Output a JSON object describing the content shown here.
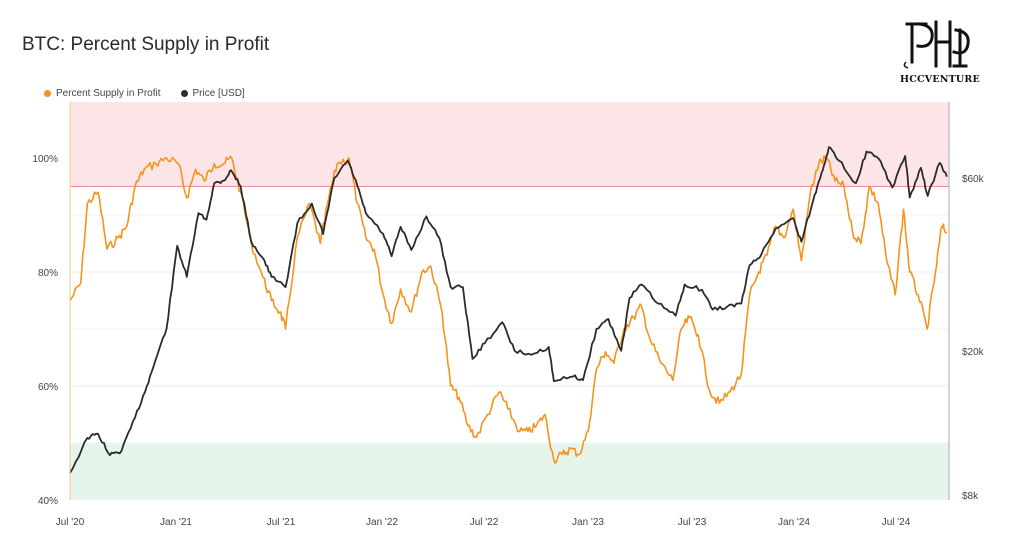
{
  "title": "BTC: Percent Supply in Profit",
  "logo": {
    "text": "HCCVENTURE"
  },
  "legend": [
    {
      "label": "Percent Supply in Profit",
      "color": "#f7931a"
    },
    {
      "label": "Price [USD]",
      "color": "#2b2b2b"
    }
  ],
  "chart_data": {
    "type": "line",
    "title": "BTC: Percent Supply in Profit",
    "x_ticks": [
      "Jul '20",
      "Jan '21",
      "Jul '21",
      "Jan '22",
      "Jul '22",
      "Jan '23",
      "Jul '23",
      "Jan '24",
      "Jul '24"
    ],
    "y_left_ticks": [
      "100%",
      "80%",
      "60%",
      "40%"
    ],
    "y_left_range": [
      40,
      110
    ],
    "y_right_ticks": [
      "$60k",
      "$20k",
      "$8k"
    ],
    "y_right_scale": "log",
    "bands": [
      {
        "name": "upper",
        "from": 95,
        "to": 110,
        "color": "#fde4e6",
        "line_color": "#f08aa0"
      },
      {
        "name": "lower",
        "from": 40,
        "to": 50,
        "color": "#e6f5ec",
        "line_color": "#8fcfa9"
      }
    ],
    "series": [
      {
        "name": "Percent Supply in Profit",
        "color": "#f7931a",
        "axis": "left",
        "unit": "%",
        "points": [
          [
            "2020-07-01",
            75
          ],
          [
            "2020-07-20",
            78
          ],
          [
            "2020-08-01",
            92
          ],
          [
            "2020-08-20",
            94
          ],
          [
            "2020-09-05",
            84
          ],
          [
            "2020-09-25",
            86
          ],
          [
            "2020-10-10",
            88
          ],
          [
            "2020-10-25",
            95
          ],
          [
            "2020-11-10",
            98
          ],
          [
            "2020-12-01",
            99
          ],
          [
            "2020-12-20",
            100
          ],
          [
            "2021-01-10",
            99
          ],
          [
            "2021-01-25",
            93
          ],
          [
            "2021-02-10",
            98
          ],
          [
            "2021-02-25",
            96
          ],
          [
            "2021-03-15",
            99
          ],
          [
            "2021-04-01",
            99
          ],
          [
            "2021-04-15",
            100
          ],
          [
            "2021-05-01",
            94
          ],
          [
            "2021-05-20",
            85
          ],
          [
            "2021-06-10",
            79
          ],
          [
            "2021-06-25",
            75
          ],
          [
            "2021-07-10",
            73
          ],
          [
            "2021-07-20",
            70
          ],
          [
            "2021-08-10",
            86
          ],
          [
            "2021-09-01",
            92
          ],
          [
            "2021-09-20",
            85
          ],
          [
            "2021-10-05",
            93
          ],
          [
            "2021-10-20",
            99
          ],
          [
            "2021-11-10",
            100
          ],
          [
            "2021-11-25",
            92
          ],
          [
            "2021-12-10",
            86
          ],
          [
            "2021-12-25",
            84
          ],
          [
            "2022-01-10",
            76
          ],
          [
            "2022-01-25",
            71
          ],
          [
            "2022-02-10",
            77
          ],
          [
            "2022-03-01",
            73
          ],
          [
            "2022-03-20",
            80
          ],
          [
            "2022-04-05",
            81
          ],
          [
            "2022-04-25",
            73
          ],
          [
            "2022-05-10",
            60
          ],
          [
            "2022-05-25",
            58
          ],
          [
            "2022-06-10",
            53
          ],
          [
            "2022-06-25",
            51
          ],
          [
            "2022-07-15",
            55
          ],
          [
            "2022-08-05",
            59
          ],
          [
            "2022-08-20",
            56
          ],
          [
            "2022-09-10",
            52
          ],
          [
            "2022-09-25",
            52
          ],
          [
            "2022-10-10",
            53
          ],
          [
            "2022-10-25",
            55
          ],
          [
            "2022-11-10",
            47
          ],
          [
            "2022-11-25",
            48
          ],
          [
            "2022-12-10",
            49
          ],
          [
            "2022-12-25",
            48
          ],
          [
            "2023-01-10",
            52
          ],
          [
            "2023-01-25",
            63
          ],
          [
            "2023-02-10",
            66
          ],
          [
            "2023-02-25",
            64
          ],
          [
            "2023-03-15",
            70
          ],
          [
            "2023-04-01",
            72
          ],
          [
            "2023-04-15",
            74
          ],
          [
            "2023-05-01",
            68
          ],
          [
            "2023-05-20",
            64
          ],
          [
            "2023-06-10",
            61
          ],
          [
            "2023-06-25",
            70
          ],
          [
            "2023-07-10",
            72
          ],
          [
            "2023-07-25",
            69
          ],
          [
            "2023-08-15",
            59
          ],
          [
            "2023-09-01",
            57
          ],
          [
            "2023-09-20",
            59
          ],
          [
            "2023-10-10",
            62
          ],
          [
            "2023-10-25",
            76
          ],
          [
            "2023-11-10",
            80
          ],
          [
            "2023-11-25",
            83
          ],
          [
            "2023-12-10",
            88
          ],
          [
            "2023-12-25",
            86
          ],
          [
            "2024-01-10",
            91
          ],
          [
            "2024-01-25",
            82
          ],
          [
            "2024-02-10",
            94
          ],
          [
            "2024-02-25",
            99
          ],
          [
            "2024-03-10",
            100
          ],
          [
            "2024-03-25",
            96
          ],
          [
            "2024-04-10",
            95
          ],
          [
            "2024-04-25",
            87
          ],
          [
            "2024-05-10",
            85
          ],
          [
            "2024-05-25",
            95
          ],
          [
            "2024-06-10",
            92
          ],
          [
            "2024-06-25",
            82
          ],
          [
            "2024-07-10",
            76
          ],
          [
            "2024-07-25",
            91
          ],
          [
            "2024-08-05",
            80
          ],
          [
            "2024-08-20",
            76
          ],
          [
            "2024-09-05",
            70
          ],
          [
            "2024-09-20",
            80
          ],
          [
            "2024-10-01",
            88
          ],
          [
            "2024-10-10",
            87
          ]
        ]
      },
      {
        "name": "Price [USD]",
        "color": "#2b2b2b",
        "axis": "right",
        "unit": "USD",
        "points": [
          [
            "2020-07-01",
            9200
          ],
          [
            "2020-08-01",
            11500
          ],
          [
            "2020-08-20",
            11800
          ],
          [
            "2020-09-10",
            10300
          ],
          [
            "2020-10-01",
            10600
          ],
          [
            "2020-10-25",
            13100
          ],
          [
            "2020-11-15",
            16000
          ],
          [
            "2020-12-01",
            19000
          ],
          [
            "2020-12-20",
            23000
          ],
          [
            "2021-01-08",
            39000
          ],
          [
            "2021-01-25",
            32000
          ],
          [
            "2021-02-15",
            48000
          ],
          [
            "2021-03-01",
            46000
          ],
          [
            "2021-03-15",
            58000
          ],
          [
            "2021-04-01",
            59000
          ],
          [
            "2021-04-14",
            63000
          ],
          [
            "2021-05-01",
            57000
          ],
          [
            "2021-05-20",
            40000
          ],
          [
            "2021-06-10",
            36000
          ],
          [
            "2021-06-25",
            32000
          ],
          [
            "2021-07-20",
            30000
          ],
          [
            "2021-08-10",
            45000
          ],
          [
            "2021-09-05",
            51000
          ],
          [
            "2021-09-25",
            42000
          ],
          [
            "2021-10-15",
            60000
          ],
          [
            "2021-11-08",
            67000
          ],
          [
            "2021-11-25",
            57000
          ],
          [
            "2021-12-10",
            48000
          ],
          [
            "2022-01-10",
            42000
          ],
          [
            "2022-01-25",
            36500
          ],
          [
            "2022-02-10",
            44000
          ],
          [
            "2022-03-01",
            38000
          ],
          [
            "2022-03-28",
            47000
          ],
          [
            "2022-04-20",
            41000
          ],
          [
            "2022-05-10",
            30000
          ],
          [
            "2022-06-01",
            30000
          ],
          [
            "2022-06-18",
            19000
          ],
          [
            "2022-07-10",
            21000
          ],
          [
            "2022-08-10",
            24000
          ],
          [
            "2022-09-01",
            20000
          ],
          [
            "2022-10-01",
            19500
          ],
          [
            "2022-11-01",
            20500
          ],
          [
            "2022-11-10",
            16500
          ],
          [
            "2022-12-15",
            17000
          ],
          [
            "2023-01-01",
            16600
          ],
          [
            "2023-01-25",
            23000
          ],
          [
            "2023-02-15",
            24500
          ],
          [
            "2023-03-10",
            20000
          ],
          [
            "2023-03-25",
            28000
          ],
          [
            "2023-04-15",
            30500
          ],
          [
            "2023-05-15",
            27000
          ],
          [
            "2023-06-15",
            25000
          ],
          [
            "2023-07-01",
            30500
          ],
          [
            "2023-08-01",
            29500
          ],
          [
            "2023-08-20",
            26000
          ],
          [
            "2023-09-15",
            26500
          ],
          [
            "2023-10-10",
            27000
          ],
          [
            "2023-10-25",
            34500
          ],
          [
            "2023-11-15",
            37000
          ],
          [
            "2023-12-10",
            43500
          ],
          [
            "2024-01-10",
            46500
          ],
          [
            "2024-01-25",
            40000
          ],
          [
            "2024-02-15",
            52000
          ],
          [
            "2024-03-01",
            62000
          ],
          [
            "2024-03-14",
            73000
          ],
          [
            "2024-04-01",
            67000
          ],
          [
            "2024-05-01",
            58000
          ],
          [
            "2024-05-20",
            71000
          ],
          [
            "2024-06-10",
            68000
          ],
          [
            "2024-07-05",
            56500
          ],
          [
            "2024-07-28",
            69000
          ],
          [
            "2024-08-05",
            53000
          ],
          [
            "2024-08-25",
            64000
          ],
          [
            "2024-09-06",
            53500
          ],
          [
            "2024-09-27",
            66000
          ],
          [
            "2024-10-10",
            60500
          ]
        ]
      }
    ]
  }
}
